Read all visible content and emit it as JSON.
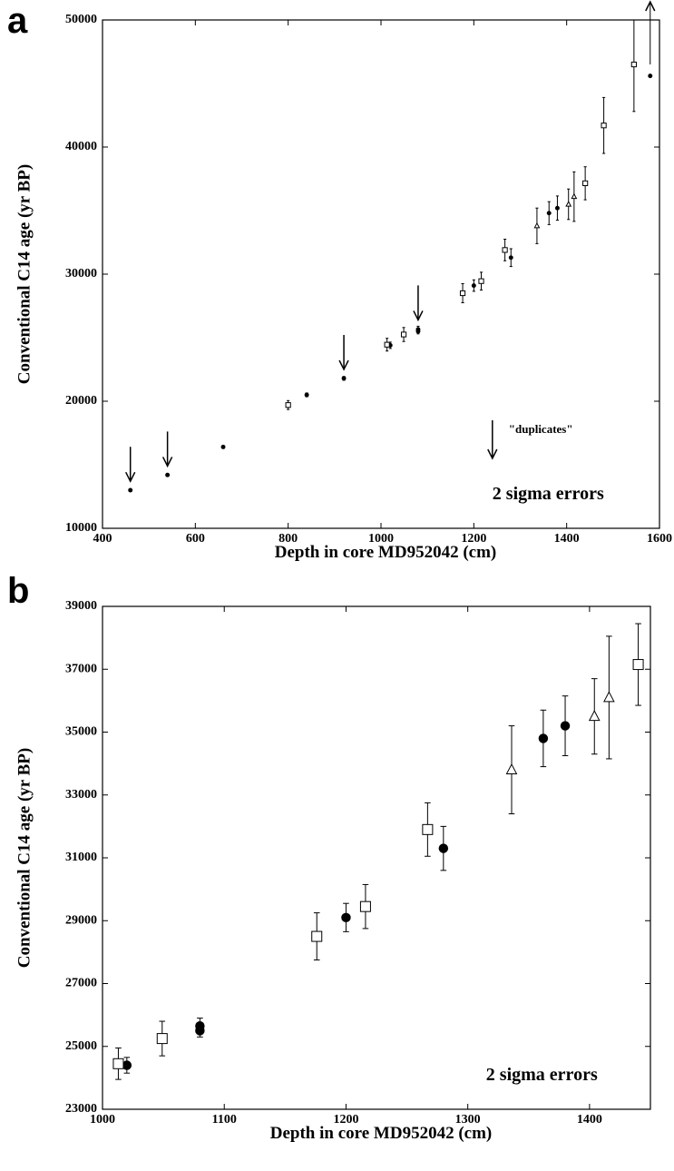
{
  "chart_data": [
    {
      "type": "scatter",
      "panel": "a",
      "xlabel": "Depth in core MD952042 (cm)",
      "ylabel": "Conventional C14 age (yr BP)",
      "xlim": [
        400,
        1600
      ],
      "ylim": [
        10000,
        50000
      ],
      "xticks": [
        400,
        600,
        800,
        1000,
        1200,
        1400,
        1600
      ],
      "yticks": [
        10000,
        20000,
        30000,
        40000,
        50000
      ],
      "annotation": "2 sigma errors",
      "duplicates_label": "\"duplicates\"",
      "series": [
        {
          "marker": "circle",
          "color": "#000000",
          "x": [
            460,
            540,
            660,
            840,
            920,
            1020,
            1080,
            1080,
            1200,
            1280,
            1362,
            1380,
            1580
          ],
          "values": [
            13000,
            14200,
            16400,
            20500,
            21800,
            24400,
            25650,
            25500,
            29100,
            31300,
            34800,
            35200,
            45600
          ],
          "errors": [
            100,
            100,
            100,
            150,
            150,
            250,
            250,
            200,
            450,
            700,
            900,
            950,
            0
          ]
        },
        {
          "marker": "square",
          "color": "#000000",
          "x": [
            800,
            1013,
            1049,
            1176,
            1216,
            1267,
            1440,
            1480,
            1545
          ],
          "values": [
            19700,
            24450,
            25250,
            28500,
            29450,
            31900,
            37150,
            41700,
            46500
          ],
          "errors": [
            350,
            500,
            550,
            750,
            700,
            850,
            1300,
            2200,
            3700
          ]
        },
        {
          "marker": "triangle",
          "color": "#000000",
          "x": [
            1336,
            1404,
            1416
          ],
          "values": [
            33800,
            35500,
            36100
          ],
          "errors": [
            1400,
            1200,
            1950
          ]
        }
      ],
      "arrows": [
        {
          "x": 460,
          "y": 13700
        },
        {
          "x": 540,
          "y": 14900
        },
        {
          "x": 920,
          "y": 22500
        },
        {
          "x": 1080,
          "y": 26400
        }
      ],
      "up_arrow": {
        "x": 1580,
        "y": 46500
      },
      "duplicates_arrow": {
        "x": 1240,
        "y": 15500
      }
    },
    {
      "type": "scatter",
      "panel": "b",
      "xlabel": "Depth in core MD952042 (cm)",
      "ylabel": "Conventional C14 age (yr BP)",
      "xlim": [
        1000,
        1450
      ],
      "ylim": [
        23000,
        39000
      ],
      "xticks": [
        1000,
        1100,
        1200,
        1300,
        1400
      ],
      "yticks": [
        23000,
        25000,
        27000,
        29000,
        31000,
        33000,
        35000,
        37000,
        39000
      ],
      "annotation": "2 sigma errors",
      "series": [
        {
          "marker": "circle",
          "color": "#000000",
          "x": [
            1020,
            1080,
            1080,
            1200,
            1280,
            1362,
            1380
          ],
          "values": [
            24400,
            25650,
            25500,
            29100,
            31300,
            34800,
            35200
          ],
          "errors": [
            250,
            250,
            200,
            450,
            700,
            900,
            950
          ]
        },
        {
          "marker": "square",
          "color": "#000000",
          "x": [
            1013,
            1049,
            1176,
            1216,
            1267,
            1440
          ],
          "values": [
            24450,
            25250,
            28500,
            29450,
            31900,
            37150
          ],
          "errors": [
            500,
            550,
            750,
            700,
            850,
            1300
          ]
        },
        {
          "marker": "triangle",
          "color": "#000000",
          "x": [
            1336,
            1404,
            1416
          ],
          "values": [
            33800,
            35500,
            36100
          ],
          "errors": [
            1400,
            1200,
            1950
          ]
        }
      ]
    }
  ]
}
